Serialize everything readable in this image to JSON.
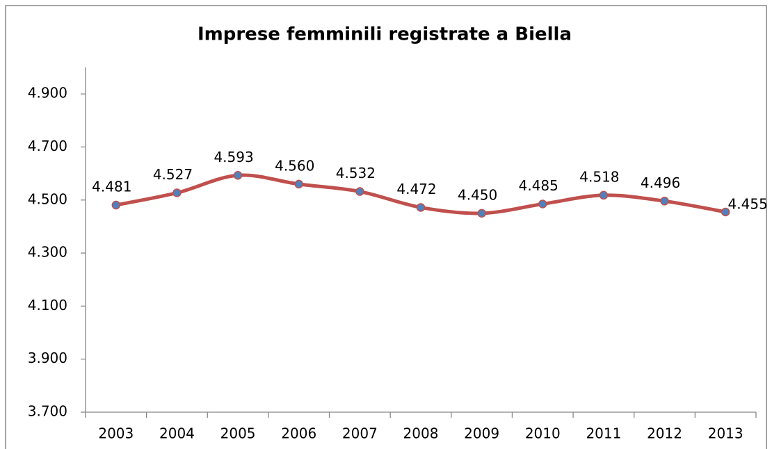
{
  "chart_data": {
    "type": "line",
    "title": "Imprese femminili registrate a Biella",
    "categories": [
      "2003",
      "2004",
      "2005",
      "2006",
      "2007",
      "2008",
      "2009",
      "2010",
      "2011",
      "2012",
      "2013"
    ],
    "values": [
      4481,
      4527,
      4593,
      4560,
      4532,
      4472,
      4450,
      4485,
      4518,
      4496,
      4455
    ],
    "value_labels": [
      "4.481",
      "4.527",
      "4.593",
      "4.560",
      "4.532",
      "4.472",
      "4.450",
      "4.485",
      "4.518",
      "4.496",
      "4.455"
    ],
    "color": "#c0504d",
    "marker_color": "#4f81bd",
    "ylim": [
      3700,
      5000
    ],
    "yticks": [
      {
        "value": 3700,
        "label": "3.700"
      },
      {
        "value": 3900,
        "label": "3.900"
      },
      {
        "value": 4100,
        "label": "4.100"
      },
      {
        "value": 4300,
        "label": "4.300"
      },
      {
        "value": 4500,
        "label": "4.500"
      },
      {
        "value": 4700,
        "label": "4.700"
      },
      {
        "value": 4900,
        "label": "4.900"
      }
    ],
    "grid": false,
    "smooth": true
  }
}
